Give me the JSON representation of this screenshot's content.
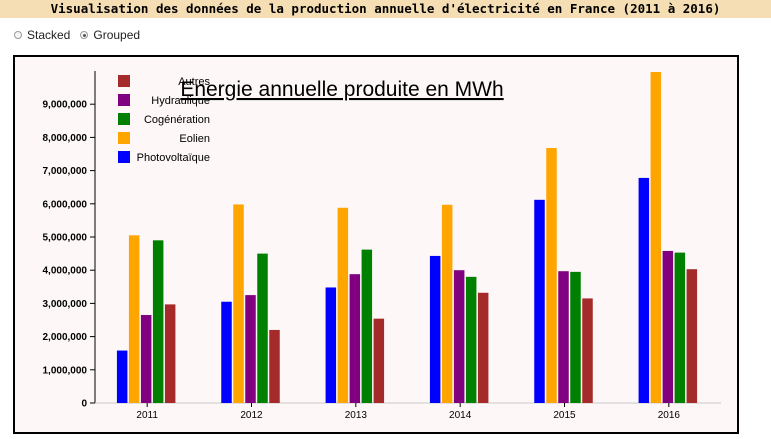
{
  "page": {
    "title": "Visualisation des données de la production annuelle d'électricité en France (2011 à 2016)"
  },
  "controls": {
    "options": [
      {
        "label": "Stacked",
        "checked": false
      },
      {
        "label": "Grouped",
        "checked": true
      }
    ]
  },
  "chart_data": {
    "type": "bar",
    "mode": "grouped",
    "title": "Energie annuelle produite en MWh",
    "categories": [
      "2011",
      "2012",
      "2013",
      "2014",
      "2015",
      "2016"
    ],
    "ylim": [
      0,
      10000000
    ],
    "yticks": [
      0,
      1000000,
      2000000,
      3000000,
      4000000,
      5000000,
      6000000,
      7000000,
      8000000,
      9000000
    ],
    "ytick_labels": [
      "0",
      "1,000,000",
      "2,000,000",
      "3,000,000",
      "4,000,000",
      "5,000,000",
      "6,000,000",
      "7,000,000",
      "8,000,000",
      "9,000,000"
    ],
    "legend_position": "top-left",
    "series": [
      {
        "name": "Photovoltaïque",
        "color": "#0000ff",
        "values": [
          1580000,
          3050000,
          3480000,
          4430000,
          6120000,
          6780000
        ]
      },
      {
        "name": "Eolien",
        "color": "#ffa500",
        "values": [
          5050000,
          5980000,
          5880000,
          5970000,
          7680000,
          9970000
        ]
      },
      {
        "name": "Hydraulique",
        "color": "#800080",
        "values": [
          2650000,
          3250000,
          3880000,
          4000000,
          3970000,
          4580000
        ]
      },
      {
        "name": "Cogénération",
        "color": "#008000",
        "values": [
          4900000,
          4500000,
          4620000,
          3800000,
          3950000,
          4530000
        ]
      },
      {
        "name": "Autres",
        "color": "#a52a2a",
        "values": [
          2970000,
          2200000,
          2540000,
          3320000,
          3150000,
          4030000
        ]
      }
    ],
    "legend_order": [
      "Autres",
      "Hydraulique",
      "Cogénération",
      "Eolien",
      "Photovoltaïque"
    ]
  }
}
